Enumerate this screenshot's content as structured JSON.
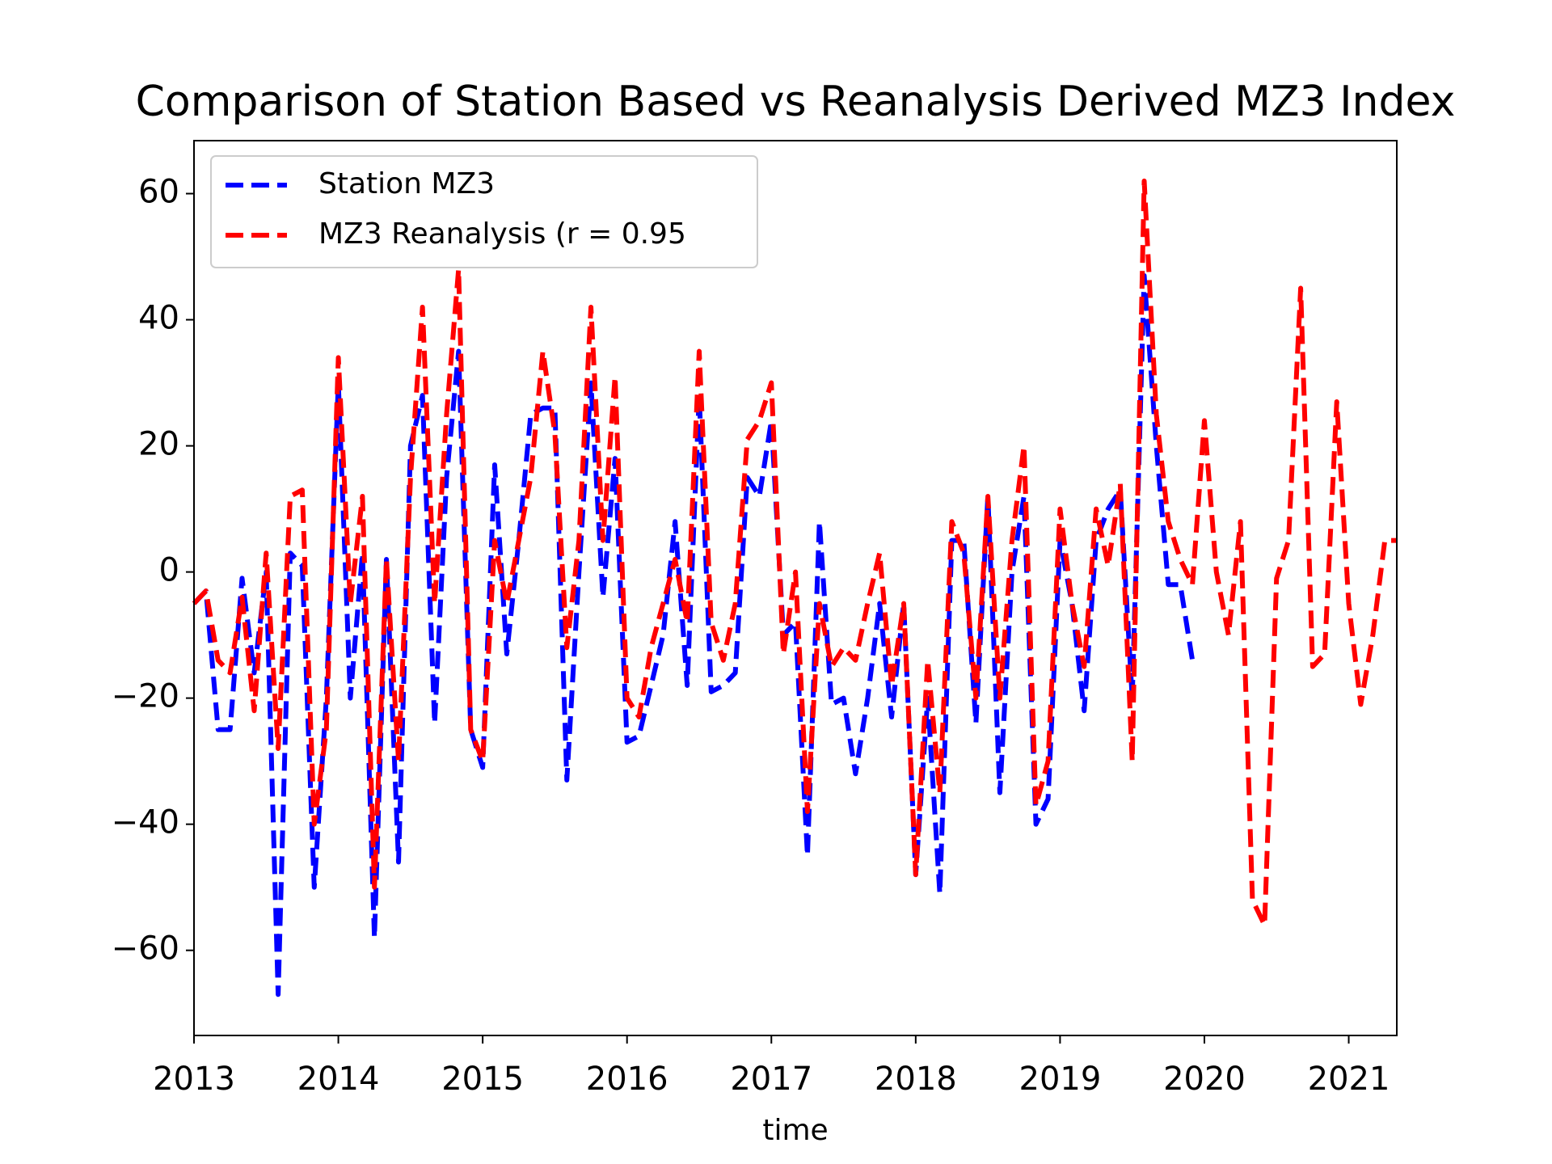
{
  "chart_data": {
    "type": "line",
    "title": "Comparison of Station Based vs Reanalysis Derived MZ3 Index",
    "x_label": "time",
    "x": [
      2013.0,
      2013.083,
      2013.167,
      2013.25,
      2013.333,
      2013.417,
      2013.5,
      2013.583,
      2013.667,
      2013.75,
      2013.833,
      2013.917,
      2014.0,
      2014.083,
      2014.167,
      2014.25,
      2014.333,
      2014.417,
      2014.5,
      2014.583,
      2014.667,
      2014.75,
      2014.833,
      2014.917,
      2015.0,
      2015.083,
      2015.167,
      2015.25,
      2015.333,
      2015.417,
      2015.5,
      2015.583,
      2015.667,
      2015.75,
      2015.833,
      2015.917,
      2016.0,
      2016.083,
      2016.167,
      2016.25,
      2016.333,
      2016.417,
      2016.5,
      2016.583,
      2016.667,
      2016.75,
      2016.833,
      2016.917,
      2017.0,
      2017.083,
      2017.167,
      2017.25,
      2017.333,
      2017.417,
      2017.5,
      2017.583,
      2017.667,
      2017.75,
      2017.833,
      2017.917,
      2018.0,
      2018.083,
      2018.167,
      2018.25,
      2018.333,
      2018.417,
      2018.5,
      2018.583,
      2018.667,
      2018.75,
      2018.833,
      2018.917,
      2019.0,
      2019.083,
      2019.167,
      2019.25,
      2019.333,
      2019.417,
      2019.5,
      2019.583,
      2019.667,
      2019.75,
      2019.833,
      2019.917,
      2020.0,
      2020.083,
      2020.167,
      2020.25,
      2020.333,
      2020.417,
      2020.5,
      2020.583,
      2020.667,
      2020.75,
      2020.833,
      2020.917,
      2021.0,
      2021.083,
      2021.167,
      2021.25,
      2021.333
    ],
    "series": [
      {
        "name": "Station MZ3",
        "color": "#0000ff",
        "values": [
          -5,
          -3,
          -25,
          -25,
          -1,
          -16,
          0,
          -67,
          3,
          1,
          -50,
          -20,
          30,
          -20,
          3,
          -58,
          2,
          -46,
          20,
          28,
          -24,
          15,
          35,
          -25,
          -31,
          17,
          -13,
          5,
          25,
          26,
          26,
          -33,
          0,
          30,
          -4,
          18,
          -27,
          -26,
          -18,
          -10,
          8,
          -18,
          28,
          -19,
          -18,
          -16,
          15,
          12,
          24,
          -10,
          -8,
          -45,
          8,
          -21,
          -20,
          -32,
          -20,
          -5,
          -23,
          -5,
          -48,
          -20,
          -51,
          5,
          5,
          -24,
          12,
          -35,
          0,
          12,
          -40,
          -36,
          5,
          -5,
          -22,
          5,
          10,
          13,
          -20,
          47,
          20,
          -2,
          -2,
          -14,
          null,
          null,
          null,
          null,
          null,
          null,
          null,
          null,
          null,
          null,
          null,
          null,
          null,
          null,
          null,
          null,
          null
        ]
      },
      {
        "name": "MZ3 Reanalysis (r = 0.95",
        "color": "#ff0000",
        "values": [
          -5,
          -3,
          -14,
          -16,
          -4,
          -22,
          3,
          -28,
          12,
          13,
          -40,
          -25,
          34,
          -5,
          12,
          -50,
          2,
          -30,
          15,
          42,
          -5,
          25,
          48,
          -25,
          -30,
          5,
          -5,
          5,
          15,
          35,
          22,
          -12,
          5,
          42,
          5,
          31,
          -20,
          -23,
          -12,
          -5,
          2,
          -8,
          35,
          -8,
          -14,
          -5,
          21,
          24,
          30,
          -13,
          0,
          -38,
          -5,
          -15,
          -12,
          -14,
          -5,
          3,
          -18,
          -5,
          -48,
          -14,
          -35,
          8,
          3,
          -20,
          12,
          -20,
          5,
          20,
          -37,
          -30,
          10,
          -5,
          -15,
          10,
          1,
          14,
          -30,
          62,
          25,
          8,
          2,
          -2,
          24,
          0,
          -10,
          8,
          -52,
          -56,
          -1,
          5,
          45,
          -15,
          -13,
          27,
          -5,
          -21,
          -10,
          5,
          5
        ]
      }
    ],
    "xlim": [
      2013.0,
      2021.333
    ],
    "xticks": [
      2013,
      2014,
      2015,
      2016,
      2017,
      2018,
      2019,
      2020,
      2021
    ],
    "ylim": [
      -73.5,
      68.4
    ],
    "yticks": [
      {
        "value": -60,
        "label": "−60"
      },
      {
        "value": -40,
        "label": "−40"
      },
      {
        "value": -20,
        "label": "−20"
      },
      0,
      20,
      40,
      60
    ],
    "linestyle": "dashed",
    "legend": "upper left",
    "grid": false
  }
}
